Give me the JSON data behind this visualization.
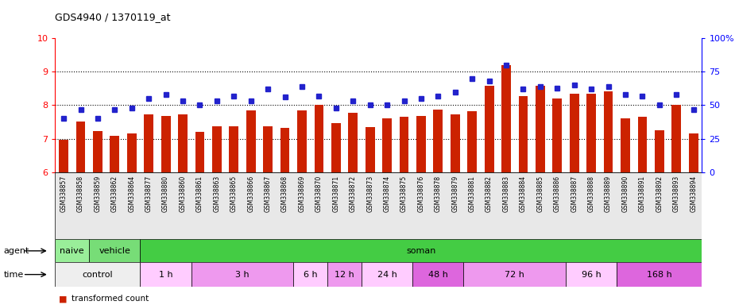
{
  "title": "GDS4940 / 1370119_at",
  "gsm_labels": [
    "GSM338857",
    "GSM338858",
    "GSM338859",
    "GSM338862",
    "GSM338864",
    "GSM338877",
    "GSM338880",
    "GSM338860",
    "GSM338861",
    "GSM338863",
    "GSM338865",
    "GSM338866",
    "GSM338867",
    "GSM338868",
    "GSM338869",
    "GSM338870",
    "GSM338871",
    "GSM338872",
    "GSM338873",
    "GSM338874",
    "GSM338875",
    "GSM338876",
    "GSM338878",
    "GSM338879",
    "GSM338881",
    "GSM338882",
    "GSM338883",
    "GSM338884",
    "GSM338885",
    "GSM338886",
    "GSM338887",
    "GSM338888",
    "GSM338889",
    "GSM338890",
    "GSM338891",
    "GSM338892",
    "GSM338893",
    "GSM338894"
  ],
  "bar_values": [
    6.98,
    7.52,
    7.22,
    7.09,
    7.15,
    7.72,
    7.68,
    7.73,
    7.2,
    7.38,
    7.38,
    7.84,
    7.38,
    7.32,
    7.84,
    8.02,
    7.47,
    7.78,
    7.34,
    7.6,
    7.65,
    7.68,
    7.87,
    7.72,
    7.82,
    8.57,
    9.2,
    8.28,
    8.58,
    8.2,
    8.35,
    8.35,
    8.42,
    7.62,
    7.66,
    7.25,
    8.0,
    7.15
  ],
  "percentile_values": [
    40,
    47,
    40,
    47,
    48,
    55,
    58,
    53,
    50,
    53,
    57,
    53,
    62,
    56,
    64,
    57,
    48,
    53,
    50,
    50,
    53,
    55,
    57,
    60,
    70,
    68,
    80,
    62,
    64,
    63,
    65,
    62,
    64,
    58,
    57,
    50,
    58,
    47
  ],
  "ylim_left": [
    6,
    10
  ],
  "ylim_right": [
    0,
    100
  ],
  "yticks_left": [
    6,
    7,
    8,
    9,
    10
  ],
  "yticks_right": [
    0,
    25,
    50,
    75,
    100
  ],
  "yticklabels_right": [
    "0",
    "25",
    "50",
    "75",
    "100%"
  ],
  "hlines": [
    7,
    8,
    9
  ],
  "bar_color": "#cc2200",
  "dot_color": "#2222cc",
  "agent_groups": [
    {
      "label": "naive",
      "start": 0,
      "end": 2,
      "color": "#99ee99"
    },
    {
      "label": "vehicle",
      "start": 2,
      "end": 5,
      "color": "#77dd77"
    },
    {
      "label": "soman",
      "start": 5,
      "end": 38,
      "color": "#44cc44"
    }
  ],
  "time_groups": [
    {
      "label": "control",
      "start": 0,
      "end": 5,
      "color": "#eeeeee"
    },
    {
      "label": "1 h",
      "start": 5,
      "end": 8,
      "color": "#ffccff"
    },
    {
      "label": "3 h",
      "start": 8,
      "end": 14,
      "color": "#ee99ee"
    },
    {
      "label": "6 h",
      "start": 14,
      "end": 16,
      "color": "#ffccff"
    },
    {
      "label": "12 h",
      "start": 16,
      "end": 18,
      "color": "#ee99ee"
    },
    {
      "label": "24 h",
      "start": 18,
      "end": 21,
      "color": "#ffccff"
    },
    {
      "label": "48 h",
      "start": 21,
      "end": 24,
      "color": "#dd66dd"
    },
    {
      "label": "72 h",
      "start": 24,
      "end": 30,
      "color": "#ee99ee"
    },
    {
      "label": "96 h",
      "start": 30,
      "end": 33,
      "color": "#ffccff"
    },
    {
      "label": "168 h",
      "start": 33,
      "end": 38,
      "color": "#dd66dd"
    }
  ]
}
